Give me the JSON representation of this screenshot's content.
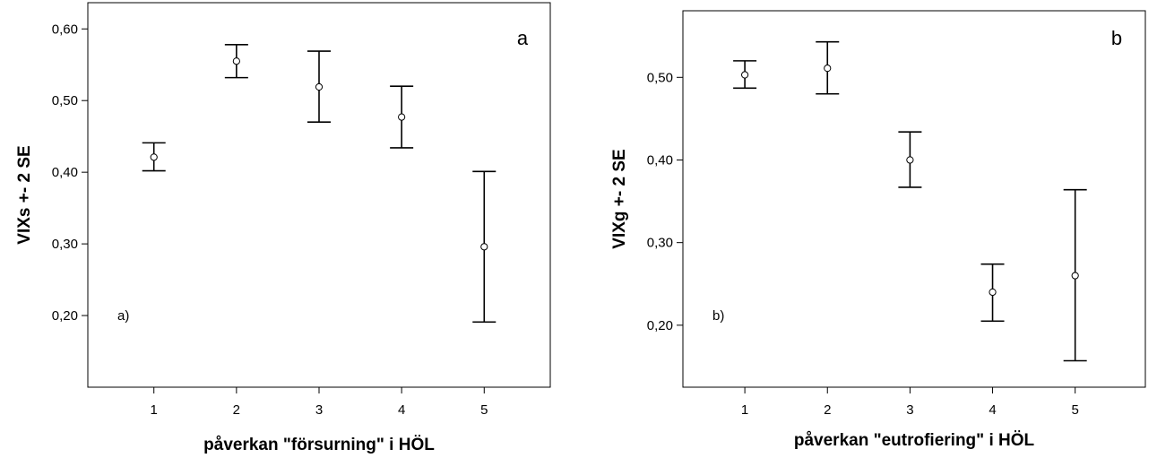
{
  "chart_data": [
    {
      "type": "scatter",
      "panel_label": "a",
      "inner_label": "a)",
      "xlabel": "påverkan \"försurning\" i HÖL",
      "ylabel": "VIXs +- 2 SE",
      "x": [
        1,
        2,
        3,
        4,
        5
      ],
      "x_tick_labels": [
        "1",
        "2",
        "3",
        "4",
        "5"
      ],
      "values": [
        0.421,
        0.555,
        0.519,
        0.477,
        0.296
      ],
      "lower": [
        0.402,
        0.532,
        0.47,
        0.434,
        0.191
      ],
      "upper": [
        0.441,
        0.578,
        0.569,
        0.52,
        0.401
      ],
      "xlim": [
        0.2,
        5.8
      ],
      "ylim": [
        0.1,
        0.6366
      ],
      "y_ticks": [
        0.2,
        0.3,
        0.4,
        0.5,
        0.6
      ],
      "y_tick_labels": [
        "0,20",
        "0,30",
        "0,40",
        "0,50",
        "0,60"
      ],
      "grid": false
    },
    {
      "type": "scatter",
      "panel_label": "b",
      "inner_label": "b)",
      "xlabel": "påverkan \"eutrofiering\" i HÖL",
      "ylabel": "VIXg +- 2 SE",
      "x": [
        1,
        2,
        3,
        4,
        5
      ],
      "x_tick_labels": [
        "1",
        "2",
        "3",
        "4",
        "5"
      ],
      "values": [
        0.503,
        0.511,
        0.4,
        0.24,
        0.26
      ],
      "lower": [
        0.487,
        0.48,
        0.367,
        0.205,
        0.157
      ],
      "upper": [
        0.52,
        0.543,
        0.434,
        0.274,
        0.364
      ],
      "xlim": [
        0.25,
        5.85
      ],
      "ylim": [
        0.125,
        0.5806
      ],
      "y_ticks": [
        0.2,
        0.3,
        0.4,
        0.5
      ],
      "y_tick_labels": [
        "0,20",
        "0,30",
        "0,40",
        "0,50"
      ],
      "grid": false
    }
  ]
}
